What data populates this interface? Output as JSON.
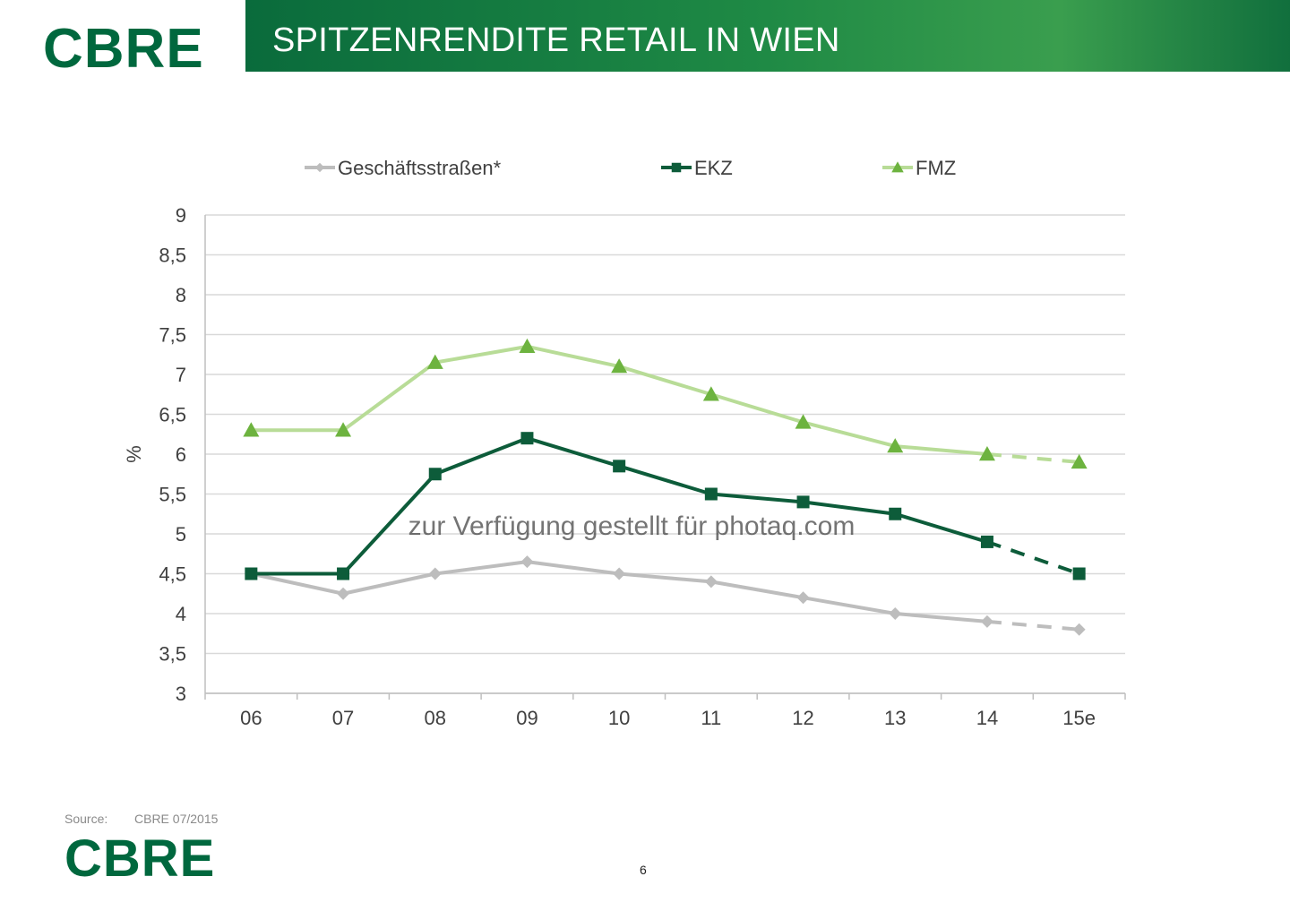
{
  "header": {
    "logo_text": "CBRE",
    "title": "SPITZENRENDITE RETAIL IN WIEN"
  },
  "footer": {
    "source_label": "Source:",
    "source_value": "CBRE 07/2015",
    "logo_text": "CBRE",
    "page_number": "6"
  },
  "watermark": "zur Verfügung gestellt für photaq.com",
  "colors": {
    "brand": "#00683e",
    "header_band": "#1f8a45",
    "series_1": "#bdbdbd",
    "series_2": "#0d5c3a",
    "series_3": "#b8dc97",
    "series_3_marker": "#6db33f"
  },
  "chart_data": {
    "type": "line",
    "title": "",
    "xlabel": "",
    "ylabel": "%",
    "categories": [
      "06",
      "07",
      "08",
      "09",
      "10",
      "11",
      "12",
      "13",
      "14",
      "15e"
    ],
    "ylim": [
      3,
      9
    ],
    "yticks": [
      "3",
      "3,5",
      "4",
      "4,5",
      "5",
      "5,5",
      "6",
      "6,5",
      "7",
      "7,5",
      "8",
      "8,5",
      "9"
    ],
    "grid": true,
    "legend_position": "top",
    "forecast_categories": [
      "15e"
    ],
    "series": [
      {
        "name": "Geschäftsstraßen*",
        "marker": "diamond",
        "color": "#bdbdbd",
        "values": [
          4.5,
          4.25,
          4.5,
          4.65,
          4.5,
          4.4,
          4.2,
          4.0,
          3.9,
          3.8
        ]
      },
      {
        "name": "EKZ",
        "marker": "square",
        "color": "#0d5c3a",
        "values": [
          4.5,
          4.5,
          5.75,
          6.2,
          5.85,
          5.5,
          5.4,
          5.25,
          4.9,
          4.5
        ]
      },
      {
        "name": "FMZ",
        "marker": "triangle",
        "color": "#b8dc97",
        "marker_color": "#6db33f",
        "values": [
          6.3,
          6.3,
          7.15,
          7.35,
          7.1,
          6.75,
          6.4,
          6.1,
          6.0,
          5.9
        ]
      }
    ]
  }
}
